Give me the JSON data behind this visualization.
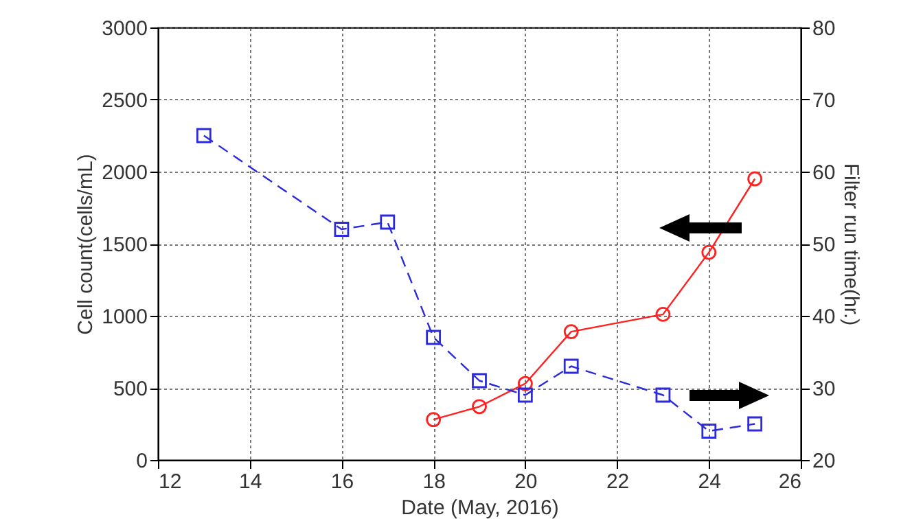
{
  "chart_data": {
    "type": "line",
    "xlabel": "Date (May, 2016)",
    "ylabel": "Cell count(cells/mL)",
    "y2label": "Filter run time(hr.)",
    "xlim": [
      12,
      26
    ],
    "xticks": [
      12,
      14,
      16,
      18,
      20,
      22,
      24,
      26
    ],
    "ylim": [
      0,
      3000
    ],
    "yticks": [
      0,
      500,
      1000,
      1500,
      2000,
      2500,
      3000
    ],
    "y2lim": [
      20,
      80
    ],
    "y2ticks": [
      20,
      30,
      40,
      50,
      60,
      70,
      80
    ],
    "grid": true,
    "series": [
      {
        "color": "#ff2020",
        "marker": "circle",
        "line_style": "solid",
        "x": [
          18,
          19,
          20,
          21,
          23,
          24,
          25
        ],
        "values": [
          280,
          370,
          530,
          890,
          1010,
          1440,
          1950
        ]
      },
      {
        "color": "#2b2bdd",
        "marker": "square",
        "line_style": "dashed",
        "axis": "y2",
        "x": [
          13,
          16,
          17,
          18,
          19,
          20,
          21,
          23,
          24,
          25
        ],
        "values": [
          65,
          52,
          53,
          37,
          31,
          29,
          33,
          29,
          24,
          25
        ]
      }
    ]
  }
}
